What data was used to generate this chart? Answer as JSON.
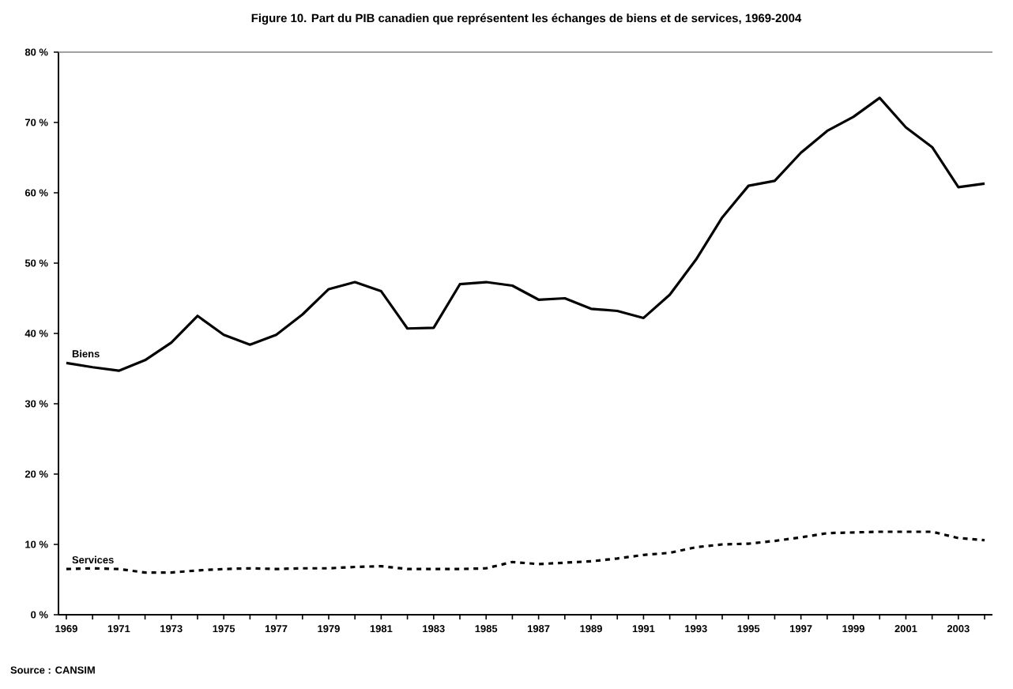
{
  "chart_data": {
    "type": "line",
    "title": "Figure 10. Part du PIB canadien que représentent les échanges de biens et de services, 1969-2004",
    "categories": [
      "1969",
      null,
      "1971",
      null,
      "1973",
      null,
      "1975",
      null,
      "1977",
      null,
      "1979",
      null,
      "1981",
      null,
      "1983",
      null,
      "1985",
      null,
      "1987",
      null,
      "1989",
      null,
      "1991",
      null,
      "1993",
      null,
      "1995",
      null,
      "1997",
      null,
      "1999",
      null,
      "2001",
      null,
      "2003",
      null
    ],
    "series": [
      {
        "name": "Biens",
        "color": "#000000",
        "line_style": "solid",
        "values": [
          35.8,
          35.2,
          34.7,
          36.2,
          38.7,
          42.5,
          39.8,
          38.4,
          39.8,
          42.7,
          46.3,
          47.3,
          46.0,
          40.7,
          40.8,
          47.0,
          47.3,
          46.8,
          44.8,
          45.0,
          43.5,
          43.2,
          42.2,
          45.5,
          50.5,
          56.5,
          61.0,
          61.7,
          65.7,
          68.8,
          70.8,
          73.5,
          69.3,
          66.5,
          60.8,
          61.3
        ]
      },
      {
        "name": "Services",
        "color": "#000000",
        "line_style": "dashed",
        "values": [
          6.5,
          6.6,
          6.5,
          6.0,
          6.0,
          6.3,
          6.5,
          6.6,
          6.5,
          6.6,
          6.6,
          6.8,
          6.9,
          6.5,
          6.5,
          6.5,
          6.6,
          7.5,
          7.2,
          7.4,
          7.6,
          8.0,
          8.5,
          8.8,
          9.6,
          10.0,
          10.1,
          10.5,
          11.0,
          11.6,
          11.7,
          11.8,
          11.8,
          11.8,
          10.9,
          10.6
        ]
      }
    ],
    "ylim": [
      0,
      80
    ],
    "yticks": [
      {
        "value": 0,
        "label": "0 %"
      },
      {
        "value": 10,
        "label": "10 %"
      },
      {
        "value": 20,
        "label": "20 %"
      },
      {
        "value": 30,
        "label": "30 %"
      },
      {
        "value": 40,
        "label": "40 %"
      },
      {
        "value": 50,
        "label": "50 %"
      },
      {
        "value": 60,
        "label": "60 %"
      },
      {
        "value": 70,
        "label": "70 %"
      },
      {
        "value": 80,
        "label": "80 %"
      }
    ],
    "grid": false,
    "annotations": [
      "Source : CANSIM"
    ]
  }
}
